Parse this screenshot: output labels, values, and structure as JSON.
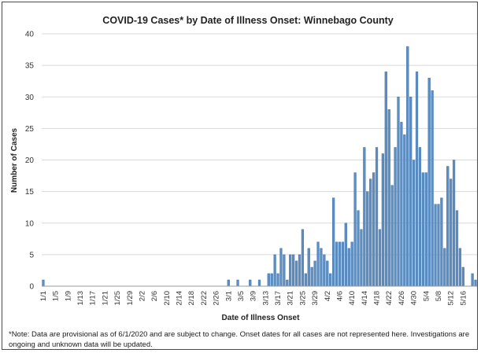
{
  "chart_data": {
    "type": "bar",
    "title": "COVID-19 Cases* by Date of Illness Onset: Winnebago County",
    "xlabel": "Date of Illness Onset",
    "ylabel": "Number of Cases",
    "ylim": [
      0,
      40
    ],
    "yticks": [
      0,
      5,
      10,
      15,
      20,
      25,
      30,
      35,
      40
    ],
    "grid": true,
    "start_date": "2020-01-01",
    "xtick_labels": [
      "1/1",
      "1/5",
      "1/9",
      "1/13",
      "1/17",
      "1/21",
      "1/25",
      "1/29",
      "2/2",
      "2/6",
      "2/10",
      "2/14",
      "2/18",
      "2/22",
      "2/26",
      "3/1",
      "3/5",
      "3/9",
      "3/13",
      "3/17",
      "3/21",
      "3/25",
      "3/29",
      "4/2",
      "4/6",
      "4/10",
      "4/14",
      "4/18",
      "4/22",
      "4/26",
      "4/30",
      "5/4",
      "5/8",
      "5/12",
      "5/16"
    ],
    "values": [
      1,
      0,
      0,
      0,
      0,
      0,
      0,
      0,
      0,
      0,
      0,
      0,
      0,
      0,
      0,
      0,
      0,
      0,
      0,
      0,
      0,
      0,
      0,
      0,
      0,
      0,
      0,
      0,
      0,
      0,
      0,
      0,
      0,
      0,
      0,
      0,
      0,
      0,
      0,
      0,
      0,
      0,
      0,
      0,
      0,
      0,
      0,
      0,
      0,
      0,
      0,
      0,
      0,
      0,
      0,
      0,
      0,
      0,
      0,
      0,
      1,
      0,
      0,
      1,
      0,
      0,
      0,
      1,
      0,
      0,
      1,
      0,
      0,
      2,
      2,
      5,
      2,
      6,
      5,
      1,
      5,
      5,
      4,
      5,
      9,
      2,
      6,
      3,
      4,
      7,
      6,
      5,
      4,
      2,
      14,
      7,
      7,
      7,
      10,
      6,
      7,
      18,
      12,
      9,
      22,
      15,
      17,
      18,
      22,
      9,
      21,
      34,
      28,
      16,
      22,
      30,
      26,
      24,
      38,
      30,
      20,
      34,
      22,
      18,
      18,
      33,
      31,
      13,
      13,
      14,
      6,
      19,
      17,
      20,
      12,
      6,
      3,
      0,
      0,
      2,
      1
    ]
  },
  "note": "*Note: Data are provisional as of 6/1/2020 and are subject to change. Onset dates for all cases are not represented here. Investigations are ongoing and unknown data will be updated."
}
